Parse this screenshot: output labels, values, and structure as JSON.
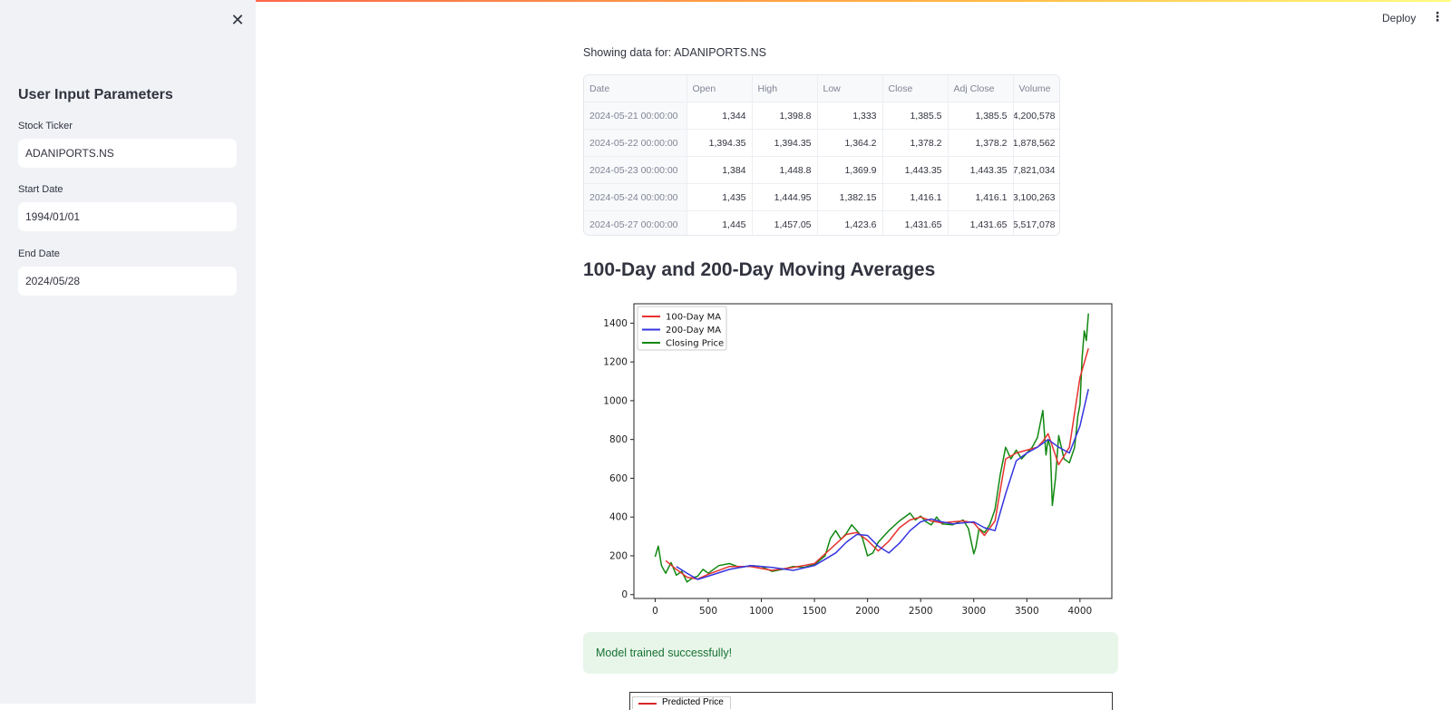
{
  "header": {
    "deploy_label": "Deploy",
    "menu_icon": "⋮"
  },
  "sidebar": {
    "close_icon": "✕",
    "title": "User Input Parameters",
    "ticker_label": "Stock Ticker",
    "ticker_value": "ADANIPORTS.NS",
    "start_label": "Start Date",
    "start_value": "1994/01/01",
    "end_label": "End Date",
    "end_value": "2024/05/28"
  },
  "main": {
    "showing_text": "Showing data for: ADANIPORTS.NS",
    "table": {
      "headers": [
        "Date",
        "Open",
        "High",
        "Low",
        "Close",
        "Adj Close",
        "Volume"
      ],
      "rows": [
        [
          "2024-05-21 00:00:00",
          "1,344",
          "1,398.8",
          "1,333",
          "1,385.5",
          "1,385.5",
          "4,200,578"
        ],
        [
          "2024-05-22 00:00:00",
          "1,394.35",
          "1,394.35",
          "1,364.2",
          "1,378.2",
          "1,378.2",
          "1,878,562"
        ],
        [
          "2024-05-23 00:00:00",
          "1,384",
          "1,448.8",
          "1,369.9",
          "1,443.35",
          "1,443.35",
          "7,821,034"
        ],
        [
          "2024-05-24 00:00:00",
          "1,435",
          "1,444.95",
          "1,382.15",
          "1,416.1",
          "1,416.1",
          "3,100,263"
        ],
        [
          "2024-05-27 00:00:00",
          "1,445",
          "1,457.05",
          "1,423.6",
          "1,431.65",
          "1,431.65",
          "5,517,078"
        ]
      ]
    },
    "ma_heading": "100-Day and 200-Day Moving Averages",
    "success_message": "Model trained successfully!",
    "second_chart_legend": "Predicted Price"
  },
  "colors": {
    "ma100": "#e8312f",
    "ma200": "#3535e0",
    "close": "#118811",
    "predicted": "#d62728"
  },
  "chart_data": {
    "type": "line",
    "title": "",
    "xlabel": "",
    "ylabel": "",
    "xlim": [
      -200,
      4300
    ],
    "ylim": [
      -20,
      1500
    ],
    "xticks": [
      0,
      500,
      1000,
      1500,
      2000,
      2500,
      3000,
      3500,
      4000
    ],
    "yticks": [
      0,
      200,
      400,
      600,
      800,
      1000,
      1200,
      1400
    ],
    "legend_position": "top-left",
    "grid": false,
    "series": [
      {
        "name": "100-Day MA",
        "x": [
          100,
          200,
          300,
          400,
          500,
          700,
          900,
          1100,
          1300,
          1500,
          1700,
          1800,
          1900,
          2000,
          2100,
          2200,
          2300,
          2400,
          2500,
          2600,
          2700,
          2800,
          2900,
          3000,
          3100,
          3200,
          3300,
          3400,
          3500,
          3600,
          3650,
          3700,
          3800,
          3900,
          4000,
          4080
        ],
        "y": [
          175,
          130,
          90,
          80,
          105,
          145,
          145,
          125,
          140,
          160,
          260,
          310,
          320,
          280,
          225,
          275,
          345,
          385,
          400,
          380,
          370,
          375,
          380,
          370,
          305,
          380,
          700,
          730,
          745,
          760,
          790,
          830,
          670,
          760,
          1120,
          1270
        ]
      },
      {
        "name": "200-Day MA",
        "x": [
          200,
          300,
          400,
          500,
          700,
          900,
          1100,
          1300,
          1500,
          1700,
          1800,
          1900,
          2000,
          2100,
          2200,
          2300,
          2400,
          2500,
          2600,
          2700,
          2800,
          2900,
          3000,
          3100,
          3200,
          3300,
          3400,
          3500,
          3600,
          3700,
          3800,
          3900,
          4000,
          4080
        ],
        "y": [
          145,
          110,
          78,
          95,
          130,
          150,
          140,
          125,
          150,
          215,
          270,
          310,
          305,
          250,
          215,
          265,
          330,
          375,
          390,
          375,
          365,
          370,
          375,
          345,
          330,
          520,
          690,
          730,
          760,
          800,
          760,
          730,
          870,
          1060
        ]
      },
      {
        "name": "Closing Price",
        "x": [
          0,
          30,
          60,
          100,
          150,
          200,
          250,
          300,
          350,
          400,
          450,
          500,
          600,
          700,
          800,
          900,
          1000,
          1100,
          1200,
          1300,
          1400,
          1500,
          1600,
          1650,
          1700,
          1750,
          1800,
          1850,
          1900,
          1950,
          2000,
          2050,
          2100,
          2150,
          2200,
          2300,
          2400,
          2450,
          2500,
          2550,
          2600,
          2650,
          2700,
          2800,
          2900,
          2950,
          3000,
          3020,
          3050,
          3100,
          3150,
          3200,
          3250,
          3300,
          3350,
          3400,
          3450,
          3500,
          3550,
          3600,
          3650,
          3680,
          3700,
          3720,
          3740,
          3770,
          3800,
          3850,
          3900,
          3950,
          3980,
          4000,
          4020,
          4040,
          4060,
          4080
        ],
        "y": [
          195,
          250,
          150,
          110,
          165,
          100,
          120,
          65,
          85,
          95,
          130,
          110,
          150,
          160,
          140,
          150,
          145,
          120,
          130,
          145,
          140,
          155,
          200,
          290,
          330,
          285,
          315,
          360,
          330,
          295,
          200,
          215,
          270,
          300,
          330,
          380,
          420,
          385,
          405,
          375,
          360,
          400,
          365,
          360,
          385,
          340,
          210,
          245,
          340,
          320,
          360,
          440,
          620,
          760,
          700,
          745,
          700,
          730,
          760,
          810,
          950,
          720,
          800,
          760,
          460,
          600,
          820,
          700,
          680,
          760,
          920,
          980,
          1220,
          1360,
          1310,
          1450
        ]
      }
    ]
  }
}
